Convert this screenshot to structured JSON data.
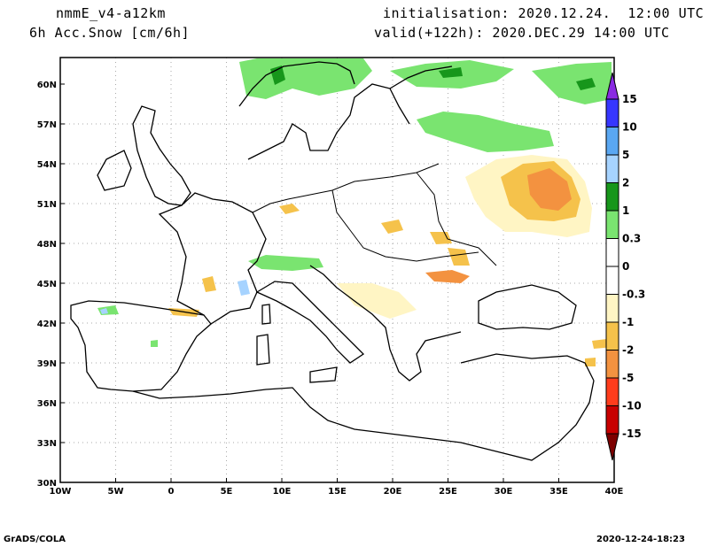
{
  "header": {
    "model": "nmmE_v4-a12km",
    "field": "6h Acc.Snow [cm/6h]",
    "init": "initialisation: 2020.12.24.  12:00 UTC",
    "valid": "valid(+122h): 2020.DEC.29 14:00 UTC"
  },
  "footer": {
    "left": "GrADS/COLA",
    "right": "2020-12-24-18:23"
  },
  "axes": {
    "lat_labels": [
      "60N",
      "57N",
      "54N",
      "51N",
      "48N",
      "45N",
      "42N",
      "39N",
      "36N",
      "33N",
      "30N"
    ],
    "lon_labels": [
      "10W",
      "5W",
      "0",
      "5E",
      "10E",
      "15E",
      "20E",
      "25E",
      "30E",
      "35E",
      "40E"
    ]
  },
  "colorbar": {
    "labels": [
      "15",
      "10",
      "5",
      "2",
      "1",
      "0.3",
      "0",
      "-0.3",
      "-1",
      "-2",
      "-5",
      "-10",
      "-15"
    ],
    "colors": [
      "#8a2be2",
      "#3636ff",
      "#5aa7f2",
      "#a6d3ff",
      "#17961b",
      "#7ae470",
      "#ffffff",
      "#ffffff",
      "#fff5c4",
      "#f5c24b",
      "#f39240",
      "#ff3c1c",
      "#c80000",
      "#7d0000"
    ]
  },
  "colors": {
    "green_light": "#7ae470",
    "green_dark": "#17961b",
    "yellow_light": "#fff5c4",
    "yellow": "#f5c24b",
    "orange": "#f39240",
    "blue_light": "#a6d3ff"
  }
}
